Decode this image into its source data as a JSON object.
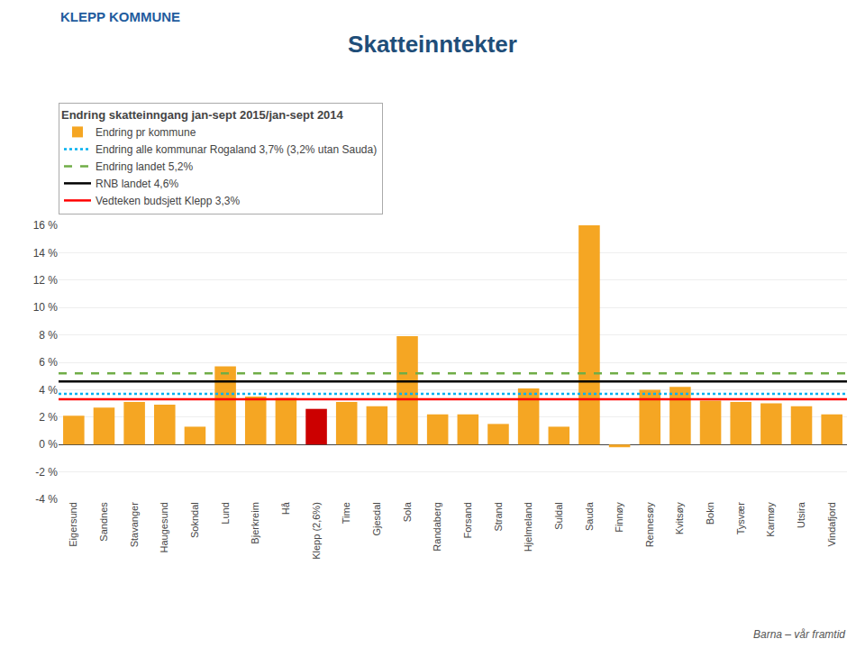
{
  "chart_data": {
    "type": "bar",
    "title": "Skatteinntekter",
    "subtitle": "Endring skatteinngang jan-sept 2015/jan-sept 2014",
    "annotations": [
      "KLEPP KOMMUNE",
      "Barna – vår framtid"
    ],
    "categories": [
      "Eigersund",
      "Sandnes",
      "Stavanger",
      "Haugesund",
      "Sokndal",
      "Lund",
      "Bjerkreim",
      "Hå",
      "Klepp (2,6%)",
      "Time",
      "Gjesdal",
      "Sola",
      "Randaberg",
      "Forsand",
      "Strand",
      "Hjelmeland",
      "Suldal",
      "Sauda",
      "Finnøy",
      "Rennesøy",
      "Kvitsøy",
      "Bokn",
      "Tysvær",
      "Karmøy",
      "Utsira",
      "Vindafjord"
    ],
    "series": [
      {
        "name": "Endring pr kommune",
        "type": "bar",
        "values": [
          2.1,
          2.7,
          3.1,
          2.9,
          1.3,
          5.7,
          3.5,
          3.4,
          2.6,
          3.1,
          2.8,
          7.9,
          2.2,
          2.2,
          1.5,
          4.1,
          1.3,
          16.0,
          -0.2,
          4.0,
          4.2,
          3.2,
          3.1,
          3.0,
          2.8,
          2.2
        ],
        "colors": [
          "#F5A623",
          "#F5A623",
          "#F5A623",
          "#F5A623",
          "#F5A623",
          "#F5A623",
          "#F5A623",
          "#F5A623",
          "#CC0000",
          "#F5A623",
          "#F5A623",
          "#F5A623",
          "#F5A623",
          "#F5A623",
          "#F5A623",
          "#F5A623",
          "#F5A623",
          "#F5A623",
          "#F5A623",
          "#F5A623",
          "#F5A623",
          "#F5A623",
          "#F5A623",
          "#F5A623",
          "#F5A623",
          "#F5A623"
        ]
      },
      {
        "name": "Endring alle kommunar Rogaland 3,7% (3,2% utan Sauda)",
        "type": "hline",
        "value": 3.7,
        "color": "#00B0F0",
        "line_style": "dotted"
      },
      {
        "name": "Endring landet 5,2%",
        "type": "hline",
        "value": 5.2,
        "color": "#70AD47",
        "line_style": "dashed"
      },
      {
        "name": "RNB landet 4,6%",
        "type": "hline",
        "value": 4.6,
        "color": "#000000",
        "line_style": "solid"
      },
      {
        "name": "Vedteken budsjett Klepp 3,3%",
        "type": "hline",
        "value": 3.3,
        "color": "#FF0000",
        "line_style": "solid"
      }
    ],
    "ylim": [
      -4,
      16
    ],
    "yticks": [
      {
        "value": -4,
        "label": "-4 %"
      },
      {
        "value": -2,
        "label": "-2 %"
      },
      {
        "value": 0,
        "label": "0 %"
      },
      {
        "value": 2,
        "label": "2 %"
      },
      {
        "value": 4,
        "label": "4 %"
      },
      {
        "value": 6,
        "label": "6 %"
      },
      {
        "value": 8,
        "label": "8 %"
      },
      {
        "value": 10,
        "label": "10 %"
      },
      {
        "value": 12,
        "label": "12 %"
      },
      {
        "value": 14,
        "label": "14 %"
      },
      {
        "value": 16,
        "label": "16 %"
      }
    ],
    "grid": true,
    "legend": "top"
  }
}
